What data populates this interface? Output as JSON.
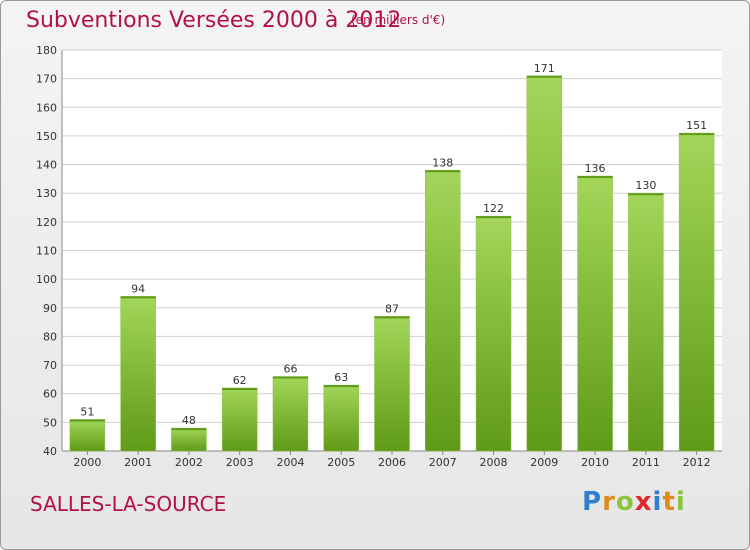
{
  "header": {
    "title": "Subventions Versées 2000 à 2012",
    "subtitle": "(en milliers d'€)"
  },
  "footer": {
    "location": "SALLES-LA-SOURCE",
    "logo_text": "Proxiti"
  },
  "colors": {
    "title": "#b30f4a",
    "bar_light": "#a3d65a",
    "bar_dark": "#5f9a18",
    "grid": "#d0d0d0",
    "logo_letters": [
      "#2d7fd0",
      "#e08a1e",
      "#8cc43c",
      "#e02a2a",
      "#2d7fd0",
      "#e08a1e",
      "#8cc43c"
    ]
  },
  "chart_data": {
    "type": "bar",
    "title": "Subventions Versées 2000 à 2012",
    "categories": [
      "2000",
      "2001",
      "2002",
      "2003",
      "2004",
      "2005",
      "2006",
      "2007",
      "2008",
      "2009",
      "2010",
      "2011",
      "2012"
    ],
    "values": [
      51,
      94,
      48,
      62,
      66,
      63,
      87,
      138,
      122,
      171,
      136,
      130,
      151
    ],
    "ylim": [
      40,
      180
    ],
    "yticks": [
      40,
      50,
      60,
      70,
      80,
      90,
      100,
      110,
      120,
      130,
      140,
      150,
      160,
      170,
      180
    ],
    "grid": true,
    "xlabel": "",
    "ylabel": ""
  }
}
